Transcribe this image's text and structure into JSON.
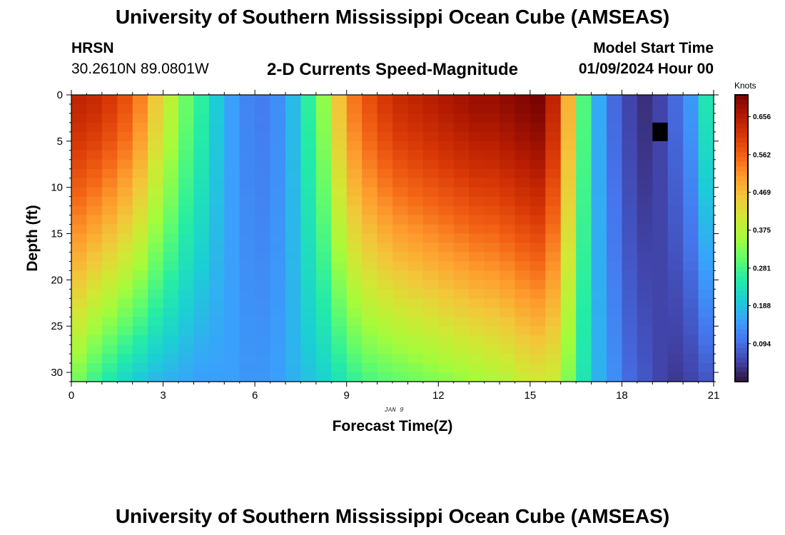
{
  "header": {
    "title": "University of Southern Mississippi Ocean Cube (AMSEAS)",
    "station": "HRSN",
    "coords": "30.2610N  89.0801W",
    "plot_title": "2-D Currents Speed-Magnitude",
    "start_label": "Model Start Time",
    "start_value": "01/09/2024 Hour 00"
  },
  "footer": {
    "title": "University of Southern Mississippi Ocean Cube (AMSEAS)"
  },
  "colors": {
    "colormap": [
      "#30123b",
      "#4145ab",
      "#4675ed",
      "#39a2fc",
      "#1bcfd4",
      "#24eca6",
      "#61fc6c",
      "#a4fc3b",
      "#d1e834",
      "#f3c63a",
      "#fe9b2d",
      "#f36315",
      "#d93806",
      "#b11901",
      "#7a0403"
    ]
  },
  "chart_data": {
    "type": "heatmap",
    "title": "2-D Currents Speed-Magnitude",
    "xlabel": "Forecast Time(Z)",
    "ylabel": "Depth (ft)",
    "x_range": [
      0,
      21
    ],
    "y_range": [
      0,
      31
    ],
    "y_inverted": true,
    "x_ticks": [
      "0",
      "3",
      "6",
      "9",
      "12",
      "15",
      "18",
      "21"
    ],
    "y_ticks": [
      "0",
      "5",
      "10",
      "15",
      "20",
      "25",
      "30"
    ],
    "x_date_label": "JAN 9",
    "colorbar": {
      "units": "Knots",
      "range": [
        0.0,
        0.71
      ],
      "ticks": [
        "0.656",
        "0.562",
        "0.469",
        "0.375",
        "0.281",
        "0.188",
        "0.094"
      ]
    },
    "depth_steps": 31,
    "columns": [
      {
        "hour": 0.0,
        "top": 0.64,
        "bottom": 0.32
      },
      {
        "hour": 0.5,
        "top": 0.63,
        "bottom": 0.28
      },
      {
        "hour": 1.0,
        "top": 0.61,
        "bottom": 0.25
      },
      {
        "hour": 1.5,
        "top": 0.58,
        "bottom": 0.22
      },
      {
        "hour": 2.0,
        "top": 0.53,
        "bottom": 0.2
      },
      {
        "hour": 2.5,
        "top": 0.45,
        "bottom": 0.18
      },
      {
        "hour": 3.0,
        "top": 0.38,
        "bottom": 0.17
      },
      {
        "hour": 3.5,
        "top": 0.31,
        "bottom": 0.16
      },
      {
        "hour": 4.0,
        "top": 0.26,
        "bottom": 0.15
      },
      {
        "hour": 4.5,
        "top": 0.2,
        "bottom": 0.15
      },
      {
        "hour": 5.0,
        "top": 0.15,
        "bottom": 0.15
      },
      {
        "hour": 5.5,
        "top": 0.12,
        "bottom": 0.14
      },
      {
        "hour": 6.0,
        "top": 0.11,
        "bottom": 0.14
      },
      {
        "hour": 6.5,
        "top": 0.13,
        "bottom": 0.15
      },
      {
        "hour": 7.0,
        "top": 0.18,
        "bottom": 0.17
      },
      {
        "hour": 7.5,
        "top": 0.26,
        "bottom": 0.19
      },
      {
        "hour": 8.0,
        "top": 0.34,
        "bottom": 0.21
      },
      {
        "hour": 8.5,
        "top": 0.46,
        "bottom": 0.24
      },
      {
        "hour": 9.0,
        "top": 0.54,
        "bottom": 0.27
      },
      {
        "hour": 9.5,
        "top": 0.58,
        "bottom": 0.29
      },
      {
        "hour": 10.0,
        "top": 0.61,
        "bottom": 0.3
      },
      {
        "hour": 10.5,
        "top": 0.63,
        "bottom": 0.31
      },
      {
        "hour": 11.0,
        "top": 0.64,
        "bottom": 0.32
      },
      {
        "hour": 11.5,
        "top": 0.65,
        "bottom": 0.33
      },
      {
        "hour": 12.0,
        "top": 0.66,
        "bottom": 0.34
      },
      {
        "hour": 12.5,
        "top": 0.67,
        "bottom": 0.35
      },
      {
        "hour": 13.0,
        "top": 0.68,
        "bottom": 0.36
      },
      {
        "hour": 13.5,
        "top": 0.68,
        "bottom": 0.37
      },
      {
        "hour": 14.0,
        "top": 0.69,
        "bottom": 0.38
      },
      {
        "hour": 14.5,
        "top": 0.7,
        "bottom": 0.4
      },
      {
        "hour": 15.0,
        "top": 0.71,
        "bottom": 0.41
      },
      {
        "hour": 15.5,
        "top": 0.64,
        "bottom": 0.4
      },
      {
        "hour": 16.0,
        "top": 0.48,
        "bottom": 0.33
      },
      {
        "hour": 16.5,
        "top": 0.29,
        "bottom": 0.24
      },
      {
        "hour": 17.0,
        "top": 0.16,
        "bottom": 0.17
      },
      {
        "hour": 17.5,
        "top": 0.09,
        "bottom": 0.13
      },
      {
        "hour": 18.0,
        "top": 0.05,
        "bottom": 0.09
      },
      {
        "hour": 18.5,
        "top": 0.03,
        "bottom": 0.07
      },
      {
        "hour": 19.0,
        "top": 0.05,
        "bottom": 0.05
      },
      {
        "hour": 19.5,
        "top": 0.09,
        "bottom": 0.04
      },
      {
        "hour": 20.0,
        "top": 0.14,
        "bottom": 0.05
      },
      {
        "hour": 20.5,
        "top": 0.24,
        "bottom": 0.07
      }
    ],
    "missing_cells": [
      {
        "hour": 19.0,
        "depth_from": 3,
        "depth_to": 5
      }
    ]
  }
}
